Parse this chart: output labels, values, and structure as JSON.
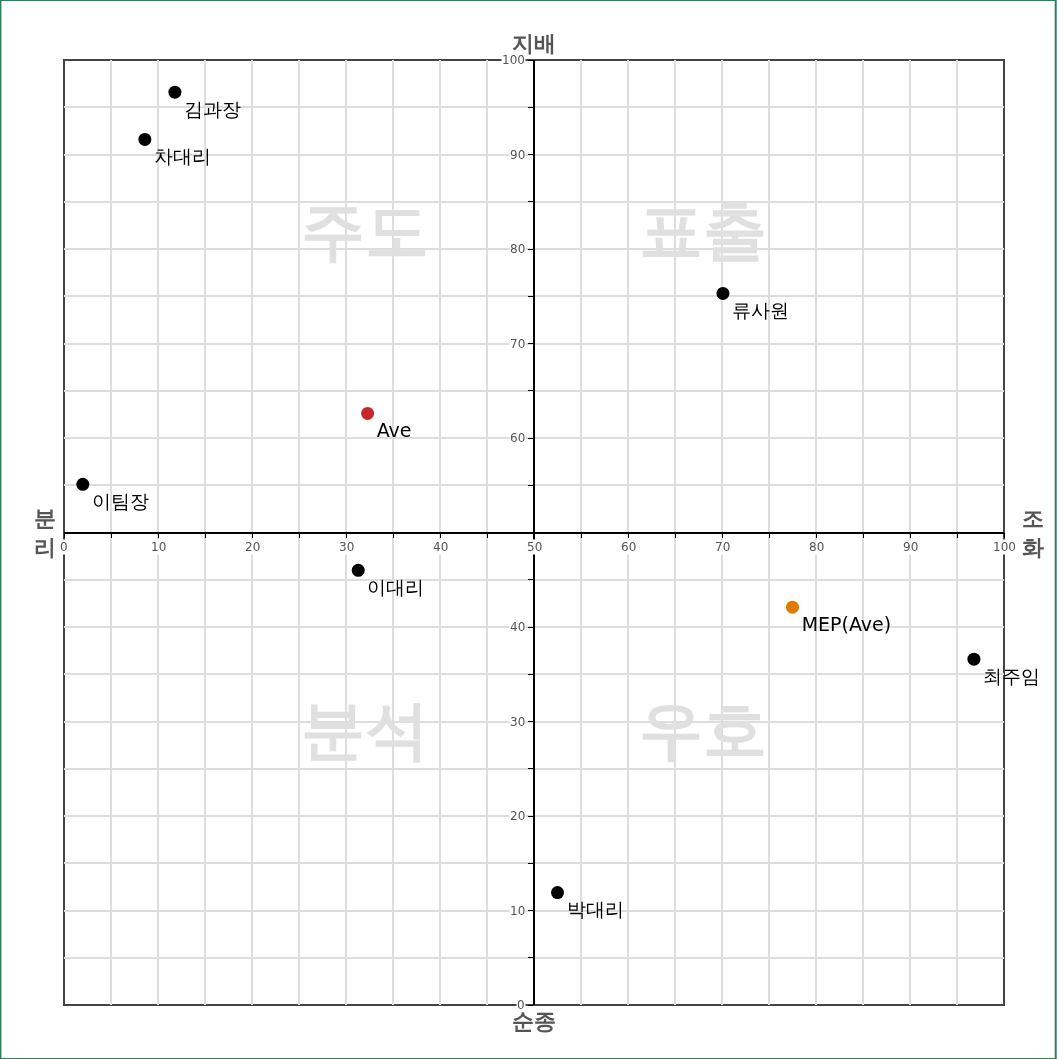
{
  "chart_data": {
    "type": "scatter",
    "title": "지배",
    "xlabel": "순종",
    "ylabel": "분리",
    "y2label": "조화",
    "annotations": [
      "주도",
      "표출",
      "분석",
      "우호"
    ],
    "x": [
      11.8,
      8.6,
      70.1,
      32.3,
      2.0,
      31.3,
      77.5,
      96.8,
      52.5
    ],
    "values": [
      96.6,
      91.6,
      75.3,
      62.6,
      55.1,
      46.0,
      42.1,
      36.6,
      11.9
    ],
    "value_labels": [
      "김과장",
      "차대리",
      "류사원",
      "Ave",
      "이팀장",
      "이대리",
      "MEP(Ave)",
      "최주임",
      "박대리"
    ],
    "colors": [
      "#000000",
      "#000000",
      "#000000",
      "#c62828",
      "#000000",
      "#000000",
      "#e07b00",
      "#000000",
      "#000000"
    ],
    "xlim": [
      0,
      100
    ],
    "ylim": [
      0,
      100
    ],
    "xticks": [
      0,
      {
        "value": 5,
        "label": null
      },
      10,
      {
        "value": 15,
        "label": null
      },
      20,
      {
        "value": 25,
        "label": null
      },
      30,
      {
        "value": 35,
        "label": null
      },
      40,
      {
        "value": 45,
        "label": null
      },
      50,
      {
        "value": 55,
        "label": null
      },
      60,
      {
        "value": 65,
        "label": null
      },
      70,
      {
        "value": 75,
        "label": null
      },
      80,
      {
        "value": 85,
        "label": null
      },
      90,
      {
        "value": 95,
        "label": null
      },
      100
    ],
    "yticks": [
      0,
      {
        "value": 5,
        "label": null
      },
      10,
      {
        "value": 15,
        "label": null
      },
      20,
      {
        "value": 25,
        "label": null
      },
      30,
      {
        "value": 35,
        "label": null
      },
      40,
      {
        "value": 45,
        "label": null
      },
      {
        "value": 50,
        "label": null
      },
      {
        "value": 55,
        "label": null
      },
      60,
      {
        "value": 65,
        "label": null
      },
      70,
      {
        "value": 75,
        "label": null
      },
      80,
      {
        "value": 85,
        "label": null
      },
      90,
      {
        "value": 95,
        "label": null
      },
      100
    ],
    "grid": true,
    "marker": "circle"
  }
}
